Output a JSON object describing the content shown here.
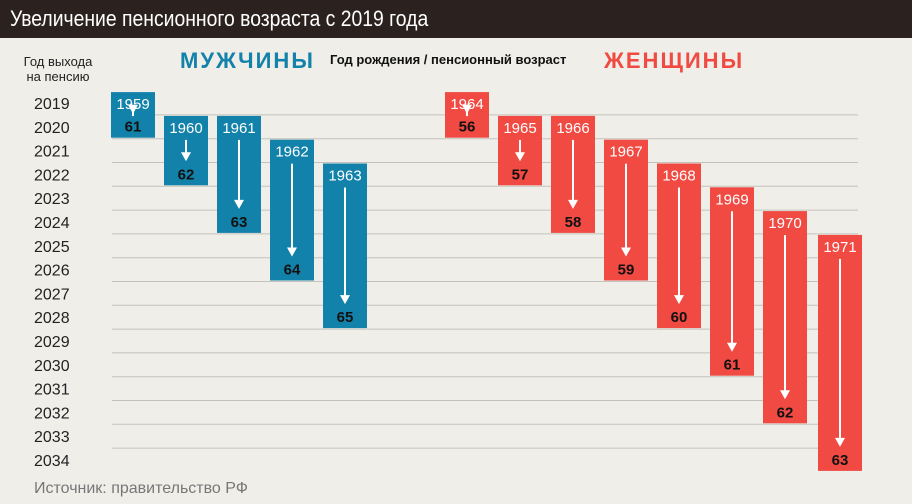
{
  "title": "Увеличение пенсионного возраста с 2019 года",
  "header_left": "Год выхода на пенсию",
  "header_men": "МУЖЧИНЫ",
  "header_center": "Год рождения / пенсионный возраст",
  "header_women": "ЖЕНЩИНЫ",
  "source": "Источник: правительство РФ",
  "colors": {
    "men": "#1382ab",
    "women": "#f04a43",
    "title_bg": "#2b2220",
    "background": "#efeee9"
  },
  "chart_data": {
    "type": "table",
    "retirement_years": [
      2019,
      2020,
      2021,
      2022,
      2023,
      2024,
      2025,
      2026,
      2027,
      2028,
      2029,
      2030,
      2031,
      2032,
      2033,
      2034
    ],
    "series": [
      {
        "name": "МУЖЧИНЫ",
        "color": "#1382ab",
        "entries": [
          {
            "birth_year": 1959,
            "age": 61,
            "start": 2019,
            "end": 2020
          },
          {
            "birth_year": 1960,
            "age": 62,
            "start": 2020,
            "end": 2022
          },
          {
            "birth_year": 1961,
            "age": 63,
            "start": 2020,
            "end": 2024
          },
          {
            "birth_year": 1962,
            "age": 64,
            "start": 2021,
            "end": 2026
          },
          {
            "birth_year": 1963,
            "age": 65,
            "start": 2022,
            "end": 2028
          }
        ]
      },
      {
        "name": "ЖЕНЩИНЫ",
        "color": "#f04a43",
        "entries": [
          {
            "birth_year": 1964,
            "age": 56,
            "start": 2019,
            "end": 2020
          },
          {
            "birth_year": 1965,
            "age": 57,
            "start": 2020,
            "end": 2022
          },
          {
            "birth_year": 1966,
            "age": 58,
            "start": 2020,
            "end": 2024
          },
          {
            "birth_year": 1967,
            "age": 59,
            "start": 2021,
            "end": 2026
          },
          {
            "birth_year": 1968,
            "age": 60,
            "start": 2022,
            "end": 2028
          },
          {
            "birth_year": 1969,
            "age": 61,
            "start": 2023,
            "end": 2030
          },
          {
            "birth_year": 1970,
            "age": 62,
            "start": 2024,
            "end": 2032
          },
          {
            "birth_year": 1971,
            "age": 63,
            "start": 2025,
            "end": 2034
          }
        ]
      }
    ]
  }
}
